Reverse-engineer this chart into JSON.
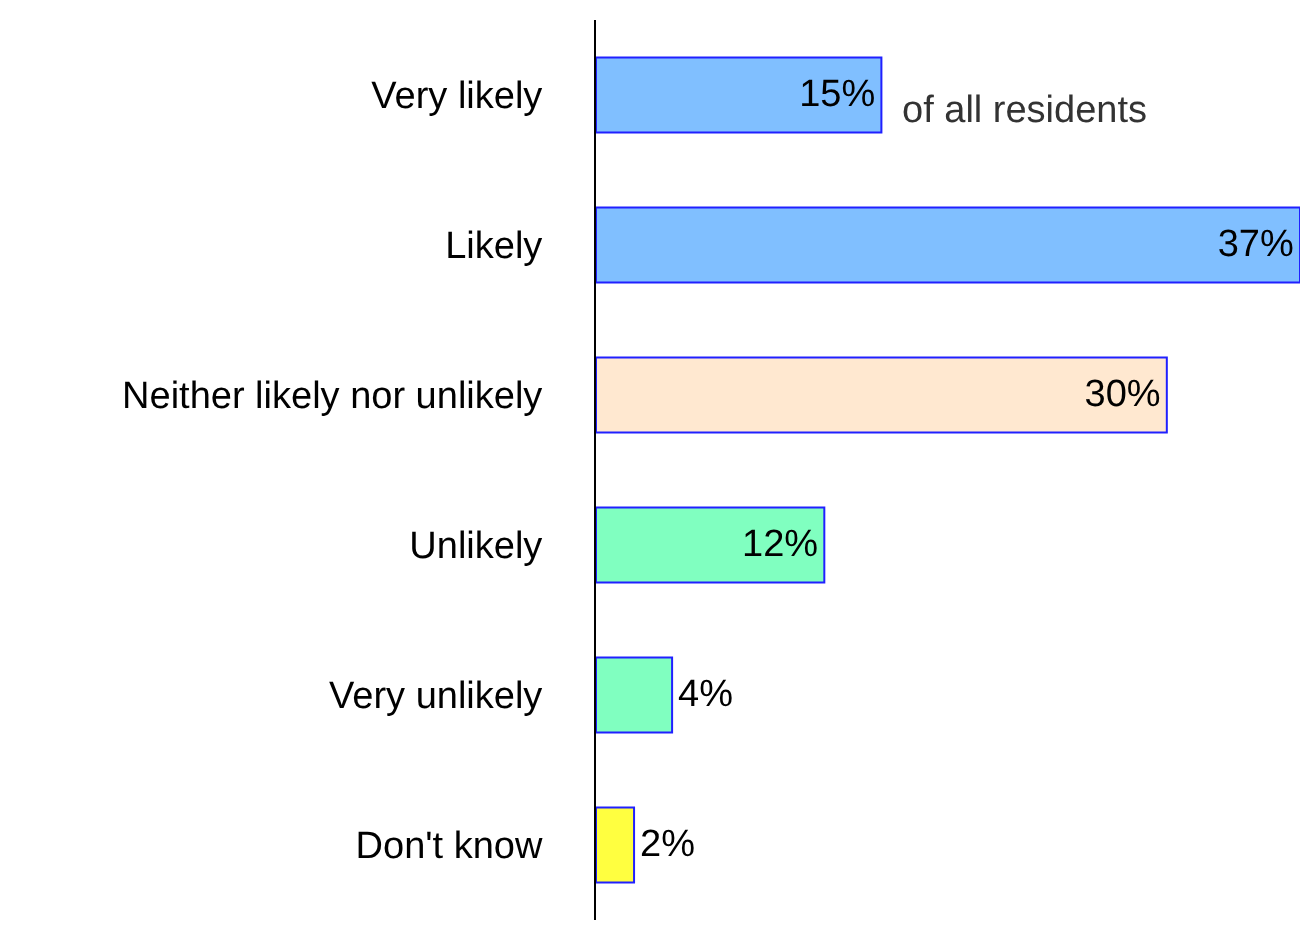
{
  "chart_data": {
    "type": "bar",
    "orientation": "horizontal",
    "categories": [
      "Very likely",
      "Likely",
      "Neither likely nor unlikely",
      "Unlikely",
      "Very unlikely",
      "Don't know"
    ],
    "values": [
      15,
      37,
      30,
      12,
      4,
      2
    ],
    "colors": [
      "#80bfff",
      "#80bfff",
      "#ffe8d0",
      "#80ffc0",
      "#80ffc0",
      "#ffff40"
    ],
    "value_labels": [
      "15%",
      "37%",
      "30%",
      "12%",
      "4%",
      "2%"
    ],
    "annotations": [
      "of all residents"
    ]
  }
}
